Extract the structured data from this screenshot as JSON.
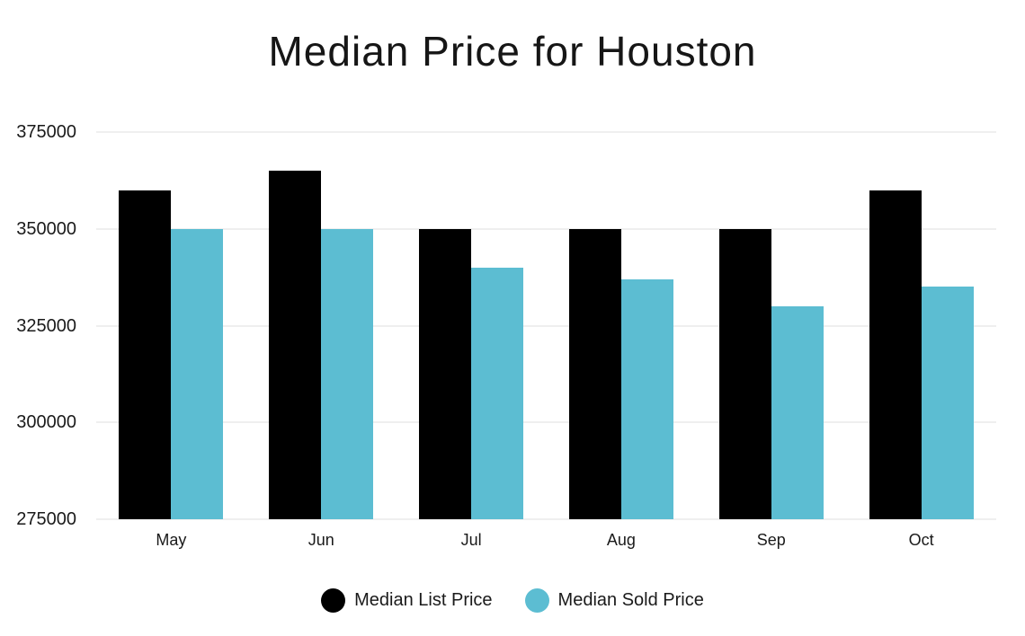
{
  "title": "Median Price for Houston",
  "colors": {
    "list_price": "#000000",
    "sold_price": "#5cbdd2",
    "gridline": "#efefef",
    "text": "#1a1a1a",
    "background": "#ffffff"
  },
  "chart_data": {
    "type": "bar",
    "title": "Median Price for Houston",
    "categories": [
      "May",
      "Jun",
      "Jul",
      "Aug",
      "Sep",
      "Oct"
    ],
    "series": [
      {
        "name": "Median List Price",
        "color": "#000000",
        "values": [
          360000,
          365000,
          350000,
          350000,
          350000,
          360000
        ]
      },
      {
        "name": "Median Sold Price",
        "color": "#5cbdd2",
        "values": [
          350000,
          350000,
          340000,
          337000,
          330000,
          335000
        ]
      }
    ],
    "xlabel": "",
    "ylabel": "",
    "ylim": [
      275000,
      375000
    ],
    "yticks": [
      275000,
      300000,
      325000,
      350000,
      375000
    ],
    "grid": true,
    "legend_position": "bottom"
  }
}
